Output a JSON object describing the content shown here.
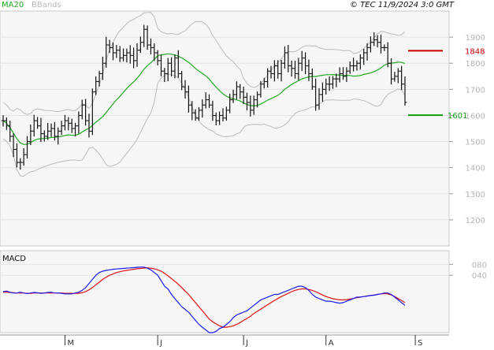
{
  "header": {
    "ma_label": "MA20",
    "bb_label": "BBands",
    "copyright": "© TEC 11/9/2024 3:0 GMT"
  },
  "macd_label": "MACD",
  "colors": {
    "ma": "#22aa22",
    "bbands": "#bbbbbb",
    "bars": "#111111",
    "resistance": "#cc0000",
    "support": "#119911",
    "macd": "#1a1aee",
    "signal": "#dd1111",
    "grid": "#e4e4e4"
  },
  "chart_data": [
    {
      "type": "ohlc",
      "ylim": [
        1100,
        2000
      ],
      "yticks": [
        1200,
        1300,
        1400,
        1500,
        1600,
        1700,
        1800,
        1900
      ],
      "ytick_labels": [
        "1200",
        "1300",
        "1400",
        "1500",
        "1600",
        "1700",
        "1800",
        "1900"
      ],
      "month_labels": [
        "M",
        "J",
        "J",
        "A",
        "S"
      ],
      "month_positions": [
        18,
        45,
        70,
        94,
        120
      ],
      "levels": {
        "resistance": {
          "label": "1848",
          "value": 1848
        },
        "support": {
          "label": "1601",
          "value": 1601
        }
      },
      "close": [
        1580,
        1560,
        1520,
        1470,
        1420,
        1420,
        1450,
        1500,
        1540,
        1580,
        1560,
        1530,
        1520,
        1540,
        1550,
        1520,
        1540,
        1560,
        1580,
        1570,
        1550,
        1560,
        1600,
        1640,
        1580,
        1540,
        1690,
        1730,
        1760,
        1800,
        1870,
        1860,
        1840,
        1850,
        1820,
        1830,
        1840,
        1830,
        1810,
        1850,
        1880,
        1930,
        1870,
        1860,
        1840,
        1810,
        1770,
        1760,
        1800,
        1770,
        1820,
        1760,
        1710,
        1690,
        1640,
        1610,
        1590,
        1620,
        1640,
        1660,
        1640,
        1600,
        1580,
        1600,
        1590,
        1620,
        1660,
        1680,
        1710,
        1690,
        1670,
        1650,
        1620,
        1660,
        1680,
        1720,
        1730,
        1770,
        1760,
        1790,
        1760,
        1800,
        1840,
        1790,
        1780,
        1760,
        1800,
        1820,
        1790,
        1760,
        1710,
        1640,
        1680,
        1700,
        1720,
        1720,
        1740,
        1740,
        1760,
        1750,
        1770,
        1790,
        1790,
        1800,
        1820,
        1840,
        1860,
        1880,
        1890,
        1880,
        1860,
        1860,
        1800,
        1740,
        1750,
        1770,
        1720,
        1650
      ]
    },
    {
      "type": "line",
      "ylim": [
        -170,
        130
      ],
      "yticks": [
        80,
        40
      ],
      "ytick_labels": [
        "080",
        "040"
      ],
      "series": [
        {
          "values": [
            -20,
            -18,
            -22,
            -25,
            -25,
            -22,
            -25,
            -27,
            -25,
            -23,
            -24,
            -26,
            -25,
            -23,
            -22,
            -25,
            -25,
            -26,
            -28,
            -28,
            -28,
            -25,
            -22,
            -15,
            -5,
            10,
            25,
            40,
            50,
            55,
            58,
            60,
            62,
            63,
            64,
            65,
            66,
            67,
            68,
            69,
            70,
            70,
            66,
            60,
            50,
            40,
            20,
            0,
            -10,
            -30,
            -45,
            -60,
            -75,
            -85,
            -95,
            -110,
            -125,
            -140,
            -150,
            -160,
            -170,
            -170,
            -165,
            -155,
            -150,
            -140,
            -130,
            -115,
            -105,
            -100,
            -95,
            -90,
            -80,
            -70,
            -60,
            -50,
            -45,
            -40,
            -35,
            -30,
            -30,
            -25,
            -20,
            -15,
            -10,
            -5,
            0,
            0,
            -5,
            -15,
            -30,
            -40,
            -45,
            -50,
            -55,
            -55,
            -57,
            -60,
            -62,
            -60,
            -55,
            -50,
            -45,
            -40,
            -40,
            -38,
            -36,
            -34,
            -33,
            -30,
            -28,
            -25,
            -25,
            -30,
            -40,
            -50,
            -60,
            -70
          ]
        },
        {
          "values": [
            -22,
            -22,
            -23,
            -24,
            -25,
            -25,
            -25,
            -26,
            -26,
            -25,
            -25,
            -25,
            -25,
            -25,
            -25,
            -25,
            -25,
            -25,
            -26,
            -26,
            -26,
            -26,
            -26,
            -24,
            -20,
            -13,
            -5,
            5,
            15,
            25,
            33,
            40,
            45,
            50,
            53,
            56,
            58,
            60,
            62,
            64,
            65,
            66,
            67,
            66,
            64,
            60,
            55,
            47,
            38,
            28,
            18,
            7,
            -5,
            -18,
            -30,
            -45,
            -60,
            -75,
            -90,
            -105,
            -120,
            -130,
            -138,
            -145,
            -150,
            -150,
            -148,
            -145,
            -140,
            -133,
            -125,
            -118,
            -110,
            -100,
            -92,
            -84,
            -76,
            -68,
            -60,
            -52,
            -45,
            -38,
            -32,
            -26,
            -20,
            -15,
            -12,
            -10,
            -10,
            -12,
            -15,
            -20,
            -26,
            -32,
            -38,
            -42,
            -46,
            -48,
            -50,
            -50,
            -49,
            -47,
            -45,
            -42,
            -40,
            -38,
            -36,
            -34,
            -32,
            -30,
            -28,
            -27,
            -28,
            -32,
            -38,
            -45,
            -52,
            -60
          ]
        }
      ]
    }
  ]
}
